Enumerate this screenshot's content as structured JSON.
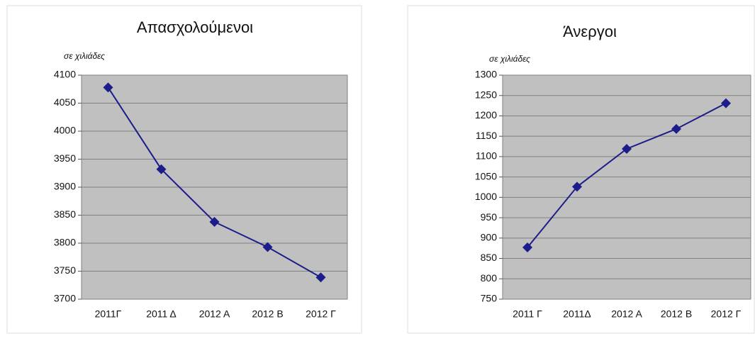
{
  "chart_data": [
    {
      "type": "line",
      "title": "Απασχολούμενοι",
      "subtitle": "σε χιλιάδες",
      "categories": [
        "2011Γ",
        "2011 Δ",
        "2012 Α",
        "2012 Β",
        "2012 Γ"
      ],
      "values": [
        4078,
        3932,
        3838,
        3793,
        3739
      ],
      "color": "#1c1c8a",
      "ylim": [
        3700,
        4100
      ],
      "yticks": [
        3700,
        3750,
        3800,
        3850,
        3900,
        3950,
        4000,
        4050,
        4100
      ],
      "grid": true
    },
    {
      "type": "line",
      "title": "Άνεργοι",
      "subtitle": "σε χιλιάδες",
      "categories": [
        "2011 Γ",
        "2011Δ",
        "2012 Α",
        "2012 Β",
        "2012 Γ"
      ],
      "values": [
        877,
        1026,
        1119,
        1168,
        1231
      ],
      "color": "#1c1c8a",
      "ylim": [
        750,
        1300
      ],
      "yticks": [
        750,
        800,
        850,
        900,
        950,
        1000,
        1050,
        1100,
        1150,
        1200,
        1250,
        1300
      ],
      "grid": true
    }
  ]
}
